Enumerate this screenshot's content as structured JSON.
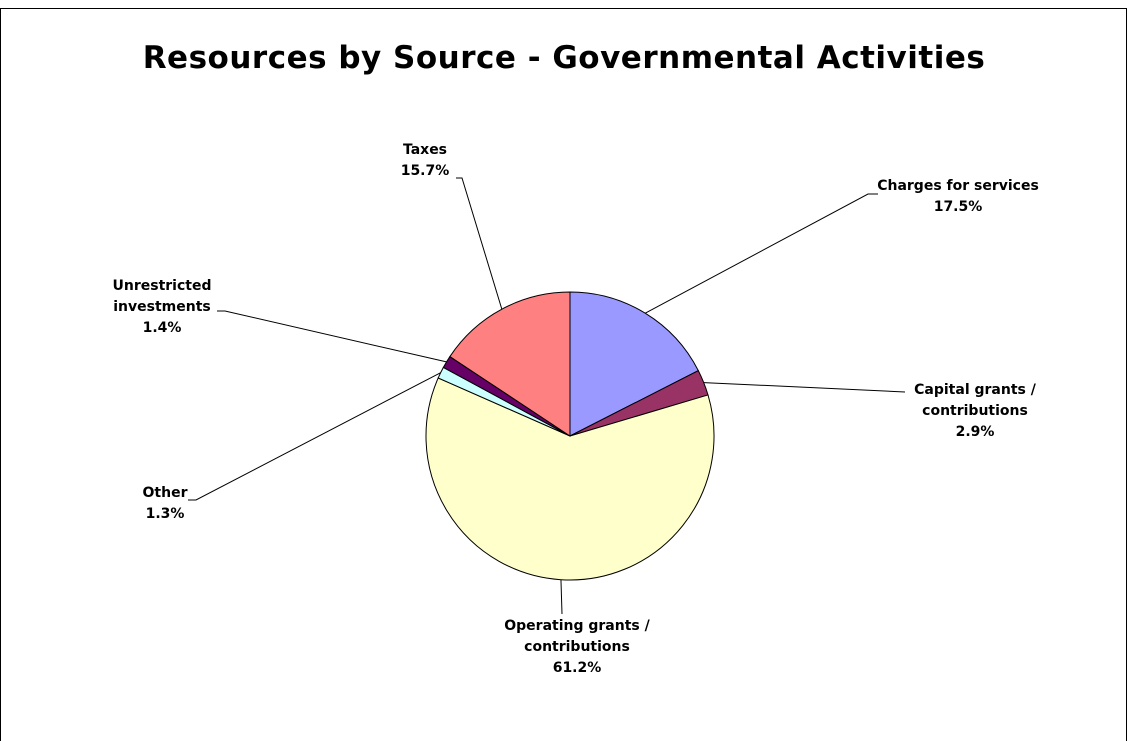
{
  "chart_data": {
    "type": "pie",
    "title": "Resources by Source - Governmental Activities",
    "slices": [
      {
        "label": "Charges for services",
        "value": 17.5,
        "percent_label": "17.5%",
        "color": "#9999FF"
      },
      {
        "label": "Capital grants / contributions",
        "value": 2.9,
        "percent_label": "2.9%",
        "color": "#993366"
      },
      {
        "label": "Operating grants / contributions",
        "value": 61.2,
        "percent_label": "61.2%",
        "color": "#FFFFCC"
      },
      {
        "label": "Other",
        "value": 1.3,
        "percent_label": "1.3%",
        "color": "#CCFFFF"
      },
      {
        "label": "Unrestricted investments",
        "value": 1.4,
        "percent_label": "1.4%",
        "color": "#660066"
      },
      {
        "label": "Taxes",
        "value": 15.7,
        "percent_label": "15.7%",
        "color": "#FF8080"
      }
    ],
    "start_angle": "12 o'clock",
    "direction": "clockwise",
    "legend": "none"
  }
}
